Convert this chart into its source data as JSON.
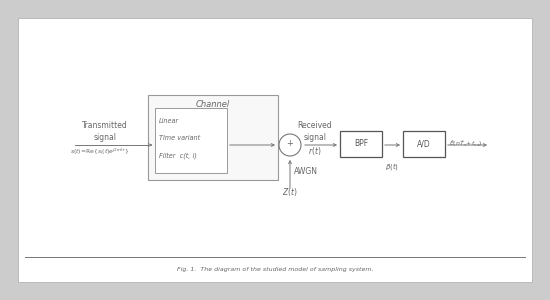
{
  "bg_color": "#cccccc",
  "white_bg": "#ffffff",
  "box_edge_chan": "#999999",
  "box_edge_dark": "#555555",
  "text_color": "#666666",
  "line_color": "#777777",
  "fig_caption": "Fig. 1.  The diagram of the studied model of sampling system.",
  "channel_label": "Channel",
  "channel_inner_text": [
    "Linear",
    "Time variant",
    "Filter  c(t, i)"
  ],
  "tx_label_line1": "Transmitted",
  "tx_label_line2": "signal",
  "rx_label_line1": "Received",
  "rx_label_line2": "signal",
  "awgn_label": "AWGN",
  "bpf_label": "BPF",
  "adc_label": "A/D",
  "font_size": 5.5
}
